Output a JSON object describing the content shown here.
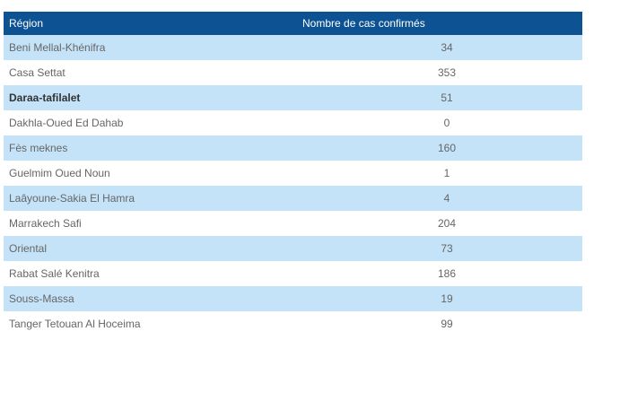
{
  "table": {
    "headers": {
      "region": "Région",
      "cases": "Nombre de cas confirmés"
    },
    "rows": [
      {
        "region": "Beni Mellal-Khénifra",
        "cases": "34",
        "bold": false
      },
      {
        "region": "Casa Settat",
        "cases": "353",
        "bold": false
      },
      {
        "region": "Daraa-tafilalet",
        "cases": "51",
        "bold": true
      },
      {
        "region": "Dakhla-Oued Ed Dahab",
        "cases": "0",
        "bold": false
      },
      {
        "region": "Fès meknes",
        "cases": "160",
        "bold": false
      },
      {
        "region": "Guelmim Oued Noun",
        "cases": "1",
        "bold": false
      },
      {
        "region": "Laâyoune-Sakia El Hamra",
        "cases": "4",
        "bold": false
      },
      {
        "region": "Marrakech Safi",
        "cases": "204",
        "bold": false
      },
      {
        "region": "Oriental",
        "cases": "73",
        "bold": false
      },
      {
        "region": "Rabat Salé Kenitra",
        "cases": "186",
        "bold": false
      },
      {
        "region": "Souss-Massa",
        "cases": "19",
        "bold": false
      },
      {
        "region": "Tanger Tetouan Al Hoceima",
        "cases": "99",
        "bold": false
      }
    ],
    "colors": {
      "header_bg": "#0d5293",
      "row_stripe": "#c5e3f8",
      "row_plain": "#ffffff",
      "text": "#666666"
    }
  }
}
